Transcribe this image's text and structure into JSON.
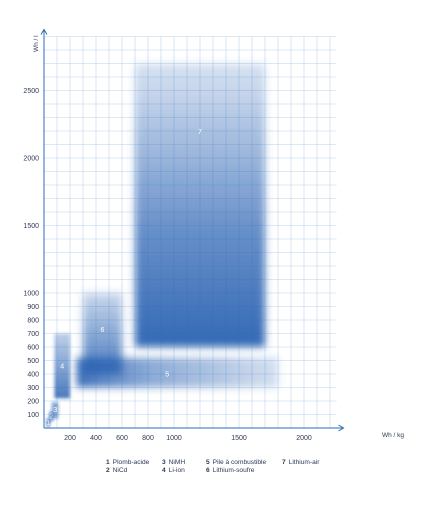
{
  "chart_data": {
    "type": "area",
    "xlabel": "Wh / kg",
    "ylabel": "Wh / l",
    "xlim": [
      0,
      2250
    ],
    "ylim": [
      0,
      2900
    ],
    "xticks": [
      200,
      400,
      600,
      800,
      1000,
      1500,
      2000
    ],
    "yticks": [
      100,
      200,
      300,
      400,
      500,
      600,
      700,
      800,
      900,
      1000,
      1500,
      2000,
      2500
    ],
    "grid": true,
    "colors": {
      "zone": "#2a62b2",
      "axis": "#2b6cb6",
      "grid": "#bcd2ec"
    },
    "regions": [
      {
        "id": "1",
        "x": [
          20,
          45
        ],
        "y": [
          10,
          70
        ]
      },
      {
        "id": "2",
        "x": [
          40,
          70
        ],
        "y": [
          50,
          120
        ]
      },
      {
        "id": "3",
        "x": [
          60,
          110
        ],
        "y": [
          70,
          190
        ]
      },
      {
        "id": "4",
        "x": [
          80,
          200
        ],
        "y": [
          220,
          700
        ]
      },
      {
        "id": "5",
        "x": [
          250,
          1800
        ],
        "y": [
          300,
          520
        ]
      },
      {
        "id": "6",
        "x": [
          300,
          600
        ],
        "y": [
          400,
          1000
        ]
      },
      {
        "id": "7",
        "x": [
          700,
          1700
        ],
        "y": [
          600,
          2700
        ]
      }
    ],
    "legend": [
      {
        "num": "1",
        "label": "Plomb-acide"
      },
      {
        "num": "2",
        "label": "NiCd"
      },
      {
        "num": "3",
        "label": "NiMH"
      },
      {
        "num": "4",
        "label": "Li-ion"
      },
      {
        "num": "5",
        "label": "Pile à combustible"
      },
      {
        "num": "6",
        "label": "Lithium-soufre"
      },
      {
        "num": "7",
        "label": "Lithium-air"
      }
    ]
  }
}
